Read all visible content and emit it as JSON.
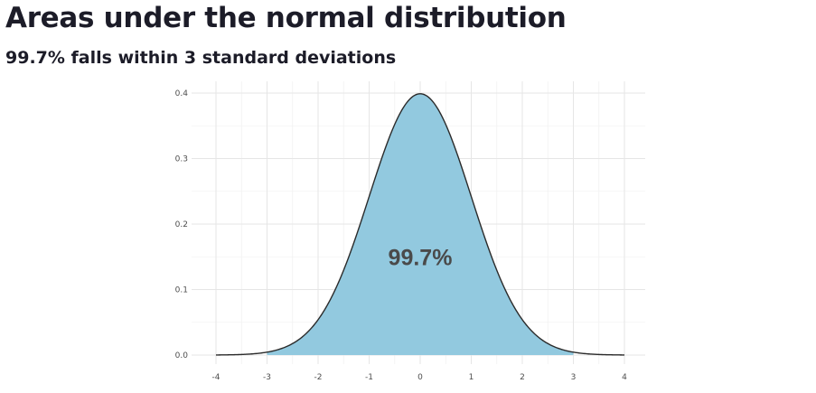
{
  "header": {
    "title": "Areas under the normal distribution",
    "subtitle": "99.7% falls within 3 standard deviations"
  },
  "chart_data": {
    "type": "area",
    "distribution": "standard normal",
    "mean": 0,
    "sd": 1,
    "x_range": [
      -4,
      4
    ],
    "ylim": [
      0,
      0.4
    ],
    "x_ticks": [
      -4,
      -3,
      -2,
      -1,
      0,
      1,
      2,
      3,
      4
    ],
    "y_ticks": [
      0.0,
      0.1,
      0.2,
      0.3,
      0.4
    ],
    "x_tick_labels": [
      "-4",
      "-3",
      "-2",
      "-1",
      "0",
      "1",
      "2",
      "3",
      "4"
    ],
    "y_tick_labels": [
      "0.0",
      "0.1",
      "0.2",
      "0.3",
      "0.4"
    ],
    "shaded_region": {
      "from": -3,
      "to": 3
    },
    "annotation": {
      "text": "99.7%",
      "x": 0,
      "y": 0.15
    },
    "peak": {
      "x": 0,
      "y": 0.399
    },
    "title": "",
    "xlabel": "",
    "ylabel": "",
    "grid": true,
    "colors": {
      "fill": "#92c9df",
      "curve": "#2b2b2b",
      "grid_major": "#e6e6e6",
      "grid_minor": "#f2f2f2"
    }
  }
}
